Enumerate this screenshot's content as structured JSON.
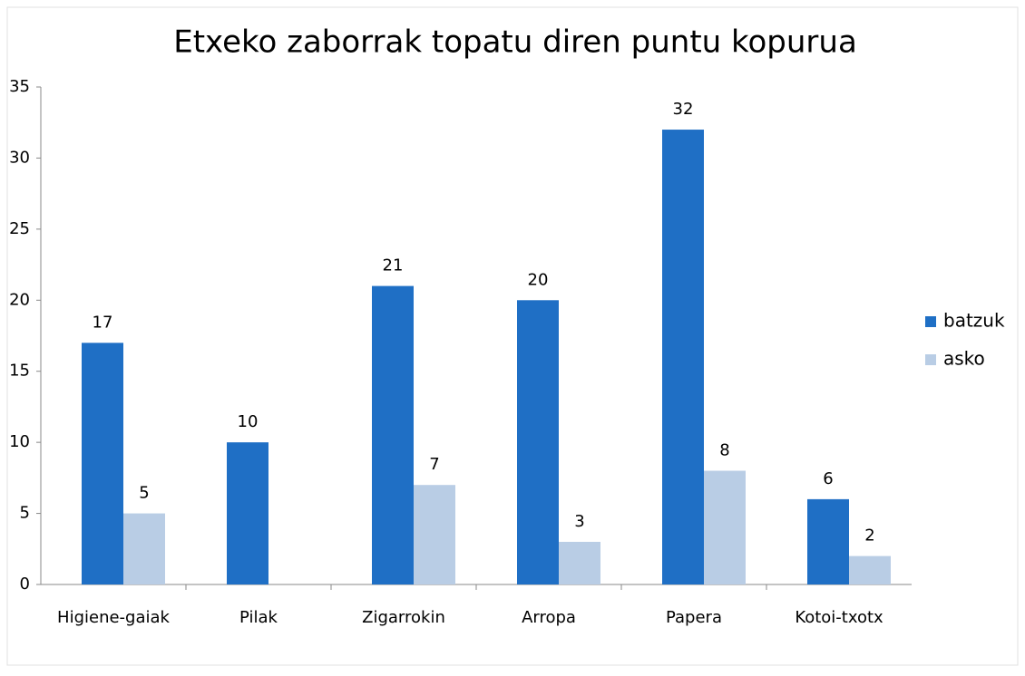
{
  "chart_data": {
    "type": "bar",
    "title": "Etxeko zaborrak topatu diren puntu kopurua",
    "categories": [
      "Higiene-gaiak",
      "Pilak",
      "Zigarrokin",
      "Arropa",
      "Papera",
      "Kotoi-txotx"
    ],
    "series": [
      {
        "name": "batzuk",
        "color": "#1f6fc5",
        "values": [
          17,
          10,
          21,
          20,
          32,
          6
        ]
      },
      {
        "name": "asko",
        "color": "#b9cde5",
        "values": [
          5,
          null,
          7,
          3,
          8,
          2
        ]
      }
    ],
    "ylim": [
      0,
      35
    ],
    "yticks": [
      0,
      5,
      10,
      15,
      20,
      25,
      30,
      35
    ],
    "legend": "right"
  }
}
